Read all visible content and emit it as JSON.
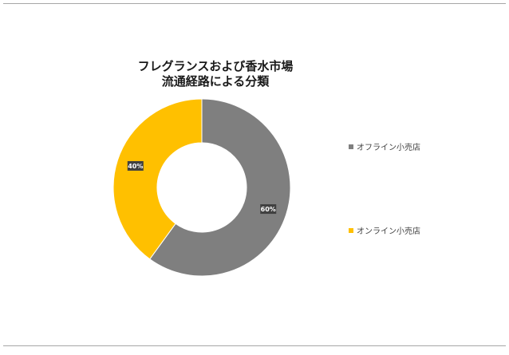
{
  "chart_data": {
    "type": "pie",
    "variant": "donut",
    "title": [
      "フレグランスおよび香水市場",
      "流通経路による分類"
    ],
    "categories": [
      "オフライン小売店",
      "オンライン小売店"
    ],
    "values": [
      60,
      40
    ],
    "data_labels": [
      "60%",
      "40%"
    ],
    "colors": [
      "#7f7f7f",
      "#ffc000"
    ],
    "legend_position": "right"
  }
}
